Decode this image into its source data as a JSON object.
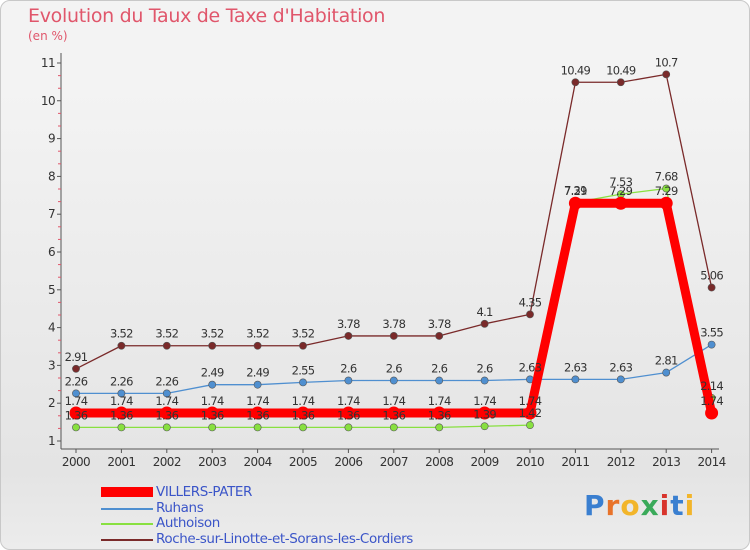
{
  "header": {
    "title": "Evolution du Taux de Taxe d'Habitation",
    "subtitle": "(en %)"
  },
  "logo": {
    "text": "Proxiti",
    "colors": [
      "#3a7fd0",
      "#e8732a",
      "#f2b52a",
      "#3aaa5a",
      "#d8342c",
      "#3a7fd0",
      "#f2b52a"
    ]
  },
  "chart_data": {
    "type": "line",
    "x": [
      "2000",
      "2001",
      "2002",
      "2003",
      "2004",
      "2005",
      "2006",
      "2007",
      "2008",
      "2009",
      "2010",
      "2011",
      "2012",
      "2013",
      "2014"
    ],
    "ylim": [
      1,
      11
    ],
    "yticks": [
      "1",
      "2",
      "3",
      "4",
      "5",
      "6",
      "7",
      "8",
      "9",
      "10",
      "11"
    ],
    "grid": false,
    "legend_position": "bottom-left",
    "series": [
      {
        "name": "VILLERS-PATER",
        "color": "#ff0000",
        "values": [
          1.74,
          1.74,
          1.74,
          1.74,
          1.74,
          1.74,
          1.74,
          1.74,
          1.74,
          1.74,
          1.74,
          7.29,
          7.29,
          7.29,
          1.74
        ],
        "labels": [
          "1.74",
          "1.74",
          "1.74",
          "1.74",
          "1.74",
          "1.74",
          "1.74",
          "1.74",
          "1.74",
          "1.74",
          "1.74",
          "7.29",
          "7.29",
          "7.29",
          "1.74"
        ]
      },
      {
        "name": "Ruhans",
        "color": "#4f8fd0",
        "values": [
          2.26,
          2.26,
          2.26,
          2.49,
          2.49,
          2.55,
          2.6,
          2.6,
          2.6,
          2.6,
          2.63,
          2.63,
          2.63,
          2.81,
          3.55
        ],
        "labels": [
          "2.26",
          "2.26",
          "2.26",
          "2.49",
          "2.49",
          "2.55",
          "2.6",
          "2.6",
          "2.6",
          "2.6",
          "2.63",
          "2.63",
          "2.63",
          "2.81",
          "3.55"
        ]
      },
      {
        "name": "Authoison",
        "color": "#88e040",
        "values": [
          1.36,
          1.36,
          1.36,
          1.36,
          1.36,
          1.36,
          1.36,
          1.36,
          1.36,
          1.39,
          1.42,
          7.31,
          7.53,
          7.68,
          2.14
        ],
        "labels": [
          "1.36",
          "1.36",
          "1.36",
          "1.36",
          "1.36",
          "1.36",
          "1.36",
          "1.36",
          "1.36",
          "1.39",
          "1.42",
          "7.31",
          "7.53",
          "7.68",
          "2.14"
        ]
      },
      {
        "name": "Roche-sur-Linotte-et-Sorans-les-Cordiers",
        "color": "#7a2a2a",
        "values": [
          2.91,
          3.52,
          3.52,
          3.52,
          3.52,
          3.52,
          3.78,
          3.78,
          3.78,
          4.1,
          4.35,
          10.49,
          10.49,
          10.7,
          5.06
        ],
        "labels": [
          "2.91",
          "3.52",
          "3.52",
          "3.52",
          "3.52",
          "3.52",
          "3.78",
          "3.78",
          "3.78",
          "4.1",
          "4.35",
          "10.49",
          "10.49",
          "10.7",
          "5.06"
        ]
      }
    ]
  }
}
